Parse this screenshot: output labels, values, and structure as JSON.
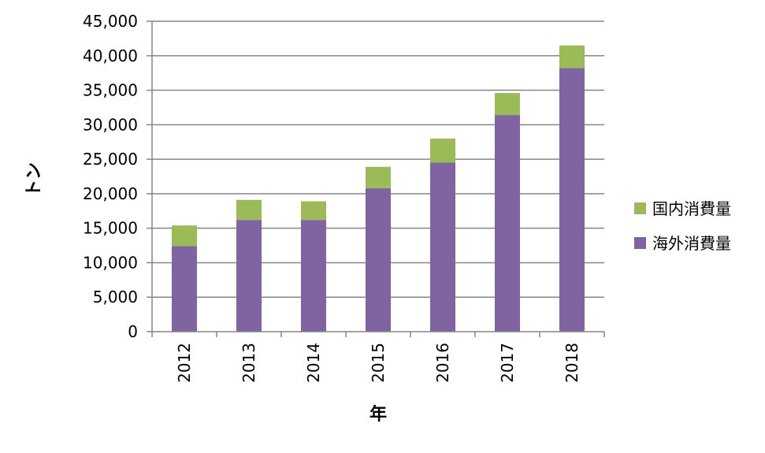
{
  "chart_data": {
    "type": "bar",
    "stacked": true,
    "categories": [
      "2012",
      "2013",
      "2014",
      "2015",
      "2016",
      "2017",
      "2018"
    ],
    "series": [
      {
        "name": "海外消費量",
        "color": "#8064a2",
        "values": [
          12400,
          16200,
          16200,
          20800,
          24500,
          31400,
          38200
        ]
      },
      {
        "name": "国内消費量",
        "color": "#9bbb59",
        "values": [
          3000,
          2900,
          2700,
          3100,
          3500,
          3200,
          3300
        ]
      }
    ],
    "ylabel": "トン",
    "xlabel": "年",
    "ylim": [
      0,
      45000
    ],
    "y_tick_step": 5000,
    "y_tick_labels": [
      "0",
      "5,000",
      "10,000",
      "15,000",
      "20,000",
      "25,000",
      "30,000",
      "35,000",
      "40,000",
      "45,000"
    ],
    "grid": true,
    "legend_position": "right",
    "legend_order": [
      "国内消費量",
      "海外消費量"
    ]
  }
}
